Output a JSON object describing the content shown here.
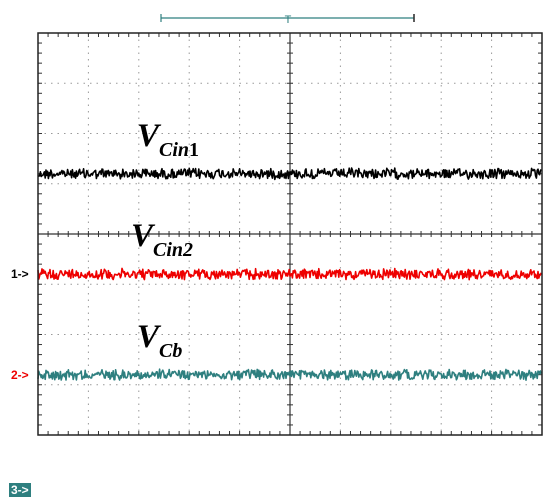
{
  "chart_data": {
    "type": "line",
    "title": "",
    "xlabel": "",
    "ylabel": "",
    "grid": true,
    "grid_divisions": {
      "x": 10,
      "y": 8
    },
    "timebase_bracket": true,
    "series": [
      {
        "name": "VCin1",
        "label": {
          "main": "V",
          "sub": "Cin",
          "sub_num": "1"
        },
        "color": "#000000",
        "level_div": 5.2,
        "noise_div": 0.09
      },
      {
        "name": "VCin2",
        "label": {
          "main": "V",
          "sub": "Cin2",
          "sub_num": ""
        },
        "color": "#ee0000",
        "level_div": 3.2,
        "noise_div": 0.09
      },
      {
        "name": "VCb",
        "label": {
          "main": "V",
          "sub": "Cb",
          "sub_num": ""
        },
        "color": "#2e7f7f",
        "level_div": 1.2,
        "noise_div": 0.09
      }
    ],
    "channel_markers": [
      {
        "text": "1->",
        "color": "#000000",
        "level_div": 3.2,
        "boxed": false
      },
      {
        "text": "2->",
        "color": "#ee0000",
        "level_div": 1.2,
        "boxed": false
      },
      {
        "text": "3->",
        "color": "#2e7f7f",
        "level_div": -1.1,
        "boxed": true
      }
    ]
  }
}
